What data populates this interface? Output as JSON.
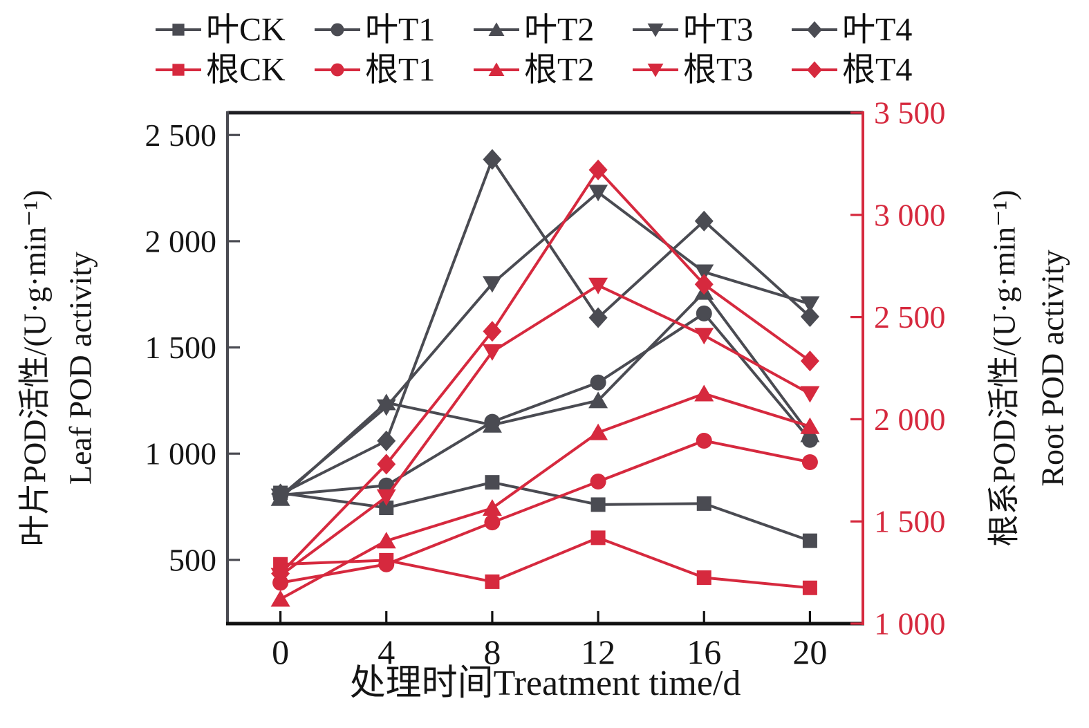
{
  "chart_data": {
    "type": "line",
    "title": "",
    "xlabel": "处理时间Treatment time/d",
    "x": [
      0,
      4,
      8,
      12,
      16,
      20
    ],
    "x_tick_labels": [
      "0",
      "4",
      "8",
      "12",
      "16",
      "20"
    ],
    "x_range": [
      -2,
      22
    ],
    "grid": "off",
    "legend_position": "top-center-two-rows",
    "left_axis": {
      "label_cn": "叶片POD活性/(U·g·min⁻¹)",
      "label_en": "Leaf POD activity",
      "ticks": [
        500,
        1000,
        1500,
        2000,
        2500
      ],
      "tick_labels": [
        "500",
        "1 000",
        "1 500",
        "2 000",
        "2 500"
      ],
      "range": [
        200,
        2605
      ]
    },
    "right_axis": {
      "label_cn": "根系POD活性/(U·g·min⁻¹)",
      "label_en": "Root POD activity",
      "ticks": [
        1000,
        1500,
        2000,
        2500,
        3000,
        3500
      ],
      "tick_labels": [
        "1 000",
        "1 500",
        "2 000",
        "2 500",
        "3 000",
        "3 500"
      ],
      "range": [
        1000,
        3500
      ]
    },
    "colors": {
      "leaf": "#4a4b52",
      "root": "#d6293e",
      "frame": "#1f1f23"
    },
    "series": [
      {
        "id": "leaf-CK",
        "name": "叶CK",
        "group": "leaf",
        "axis": "left",
        "marker": "square",
        "values": [
          815,
          745,
          865,
          760,
          765,
          590
        ]
      },
      {
        "id": "leaf-T1",
        "name": "叶T1",
        "group": "leaf",
        "axis": "left",
        "marker": "circle",
        "values": [
          805,
          850,
          1150,
          1335,
          1660,
          1065
        ]
      },
      {
        "id": "leaf-T2",
        "name": "叶T2",
        "group": "leaf",
        "axis": "left",
        "marker": "triangle-up",
        "values": [
          790,
          1240,
          1135,
          1250,
          1760,
          1090
        ]
      },
      {
        "id": "leaf-T3",
        "name": "叶T3",
        "group": "leaf",
        "axis": "left",
        "marker": "triangle-down",
        "values": [
          800,
          1220,
          1800,
          2230,
          1855,
          1705
        ]
      },
      {
        "id": "leaf-T4",
        "name": "叶T4",
        "group": "leaf",
        "axis": "left",
        "marker": "diamond",
        "values": [
          810,
          1060,
          2385,
          1640,
          2095,
          1645
        ]
      },
      {
        "id": "root-CK",
        "name": "根CK",
        "group": "root",
        "axis": "right",
        "marker": "square",
        "values": [
          1290,
          1310,
          1205,
          1420,
          1225,
          1175
        ]
      },
      {
        "id": "root-T1",
        "name": "根T1",
        "group": "root",
        "axis": "right",
        "marker": "circle",
        "values": [
          1200,
          1290,
          1495,
          1695,
          1895,
          1790
        ]
      },
      {
        "id": "root-T2",
        "name": "根T2",
        "group": "root",
        "axis": "right",
        "marker": "triangle-up",
        "values": [
          1120,
          1405,
          1565,
          1935,
          2125,
          1965
        ]
      },
      {
        "id": "root-T3",
        "name": "根T3",
        "group": "root",
        "axis": "right",
        "marker": "triangle-down",
        "values": [
          1235,
          1620,
          2330,
          2655,
          2410,
          2125
        ]
      },
      {
        "id": "root-T4",
        "name": "根T4",
        "group": "root",
        "axis": "right",
        "marker": "diamond",
        "values": [
          1245,
          1780,
          2430,
          3220,
          2660,
          2285
        ]
      }
    ],
    "legend": {
      "rows": [
        [
          "leaf-CK",
          "leaf-T1",
          "leaf-T2",
          "leaf-T3",
          "leaf-T4"
        ],
        [
          "root-CK",
          "root-T1",
          "root-T2",
          "root-T3",
          "root-T4"
        ]
      ]
    }
  }
}
